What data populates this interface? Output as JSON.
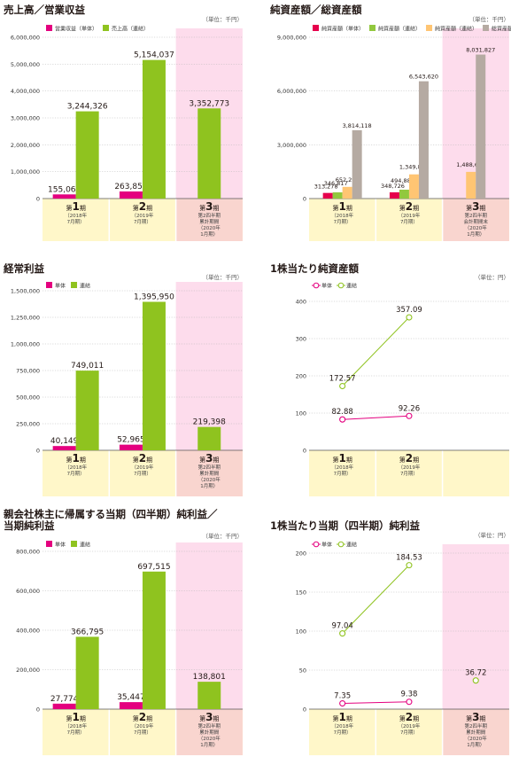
{
  "colors": {
    "single": "#e4007f",
    "consol": "#8fc31f",
    "net_single": "#e6004c",
    "net_consol": "#92c83e",
    "total_single": "#ffc573",
    "total_consol": "#b5aaa2",
    "axis_band": "#fff7c9",
    "q_band": "#fddcec",
    "q_band_axis": "#f9d5cf"
  },
  "periods": {
    "p1": {
      "num": "1",
      "pre": "第",
      "post": "期",
      "sub": [
        "（2018年",
        "7月期）"
      ]
    },
    "p2": {
      "num": "2",
      "pre": "第",
      "post": "期",
      "sub": [
        "（2019年",
        "7月期）"
      ]
    },
    "p3_cum": {
      "num": "3",
      "pre": "第",
      "post": "期",
      "sub": [
        "第2四半期",
        "累計期間",
        "（2020年",
        "1月期）"
      ]
    },
    "p3_end": {
      "num": "3",
      "pre": "第",
      "post": "期",
      "sub": [
        "第2四半期",
        "会計期間末",
        "（2020年",
        "1月期）"
      ]
    }
  },
  "chart_data": [
    {
      "id": "sales",
      "type": "bar",
      "title": "売上高／営業収益",
      "unit": "（単位：千円）",
      "categories": [
        "p1",
        "p2",
        "p3_cum"
      ],
      "ylim": [
        0,
        6000000
      ],
      "yticks": [
        "0",
        "1,000,000",
        "2,000,000",
        "3,000,000",
        "4,000,000",
        "5,000,000",
        "6,000,000"
      ],
      "series": [
        {
          "name": "営業収益（単体）",
          "color": "single",
          "values": [
            155063,
            263856,
            null
          ],
          "labels": [
            "155,063",
            "263,856",
            ""
          ]
        },
        {
          "name": "売上高（連結）",
          "color": "consol",
          "values": [
            3244326,
            5154037,
            3352773
          ],
          "labels": [
            "3,244,326",
            "5,154,037",
            "3,352,773"
          ]
        }
      ]
    },
    {
      "id": "assets",
      "type": "bar",
      "title": "純資産額／総資産額",
      "unit": "（単位：千円）",
      "categories": [
        "p1",
        "p2",
        "p3_end"
      ],
      "ylim": [
        0,
        9000000
      ],
      "yticks": [
        "0",
        "3,000,000",
        "6,000,000",
        "9,000,000"
      ],
      "series": [
        {
          "name": "純資産額（単体）",
          "color": "net_single",
          "values": [
            313278,
            348726,
            null
          ],
          "labels": [
            "313,278",
            "348,726",
            ""
          ]
        },
        {
          "name": "純資産額（連結）",
          "color": "net_consol",
          "values": [
            346817,
            494888,
            null
          ],
          "labels": [
            "346,817",
            "494,888",
            ""
          ]
        },
        {
          "name": "純資産額（連結）",
          "color": "total_single",
          "values": [
            652299,
            1349814,
            1488616
          ],
          "labels": [
            "652,299",
            "1,349,814",
            "1,488,616"
          ]
        },
        {
          "name": "総資産額（連結）",
          "color": "total_consol",
          "values": [
            3814118,
            6543620,
            8031827
          ],
          "labels": [
            "3,814,118",
            "6,543,620",
            "8,031,827"
          ]
        }
      ]
    },
    {
      "id": "ordinary",
      "type": "bar",
      "title": "経常利益",
      "unit": "（単位：千円）",
      "categories": [
        "p1",
        "p2",
        "p3_cum"
      ],
      "ylim": [
        0,
        1500000
      ],
      "yticks": [
        "0",
        "250,000",
        "500,000",
        "750,000",
        "1,000,000",
        "1,250,000",
        "1,500,000"
      ],
      "series": [
        {
          "name": "単体",
          "color": "single",
          "values": [
            40149,
            52965,
            null
          ],
          "labels": [
            "40,149",
            "52,965",
            ""
          ]
        },
        {
          "name": "連結",
          "color": "consol",
          "values": [
            749011,
            1395950,
            219398
          ],
          "labels": [
            "749,011",
            "1,395,950",
            "219,398"
          ]
        }
      ]
    },
    {
      "id": "bps",
      "type": "line",
      "title": "1株当たり純資産額",
      "unit": "（単位：円）",
      "categories": [
        "p1",
        "p2"
      ],
      "ylim": [
        0,
        400
      ],
      "yticks": [
        "0",
        "100",
        "200",
        "300",
        "400"
      ],
      "series": [
        {
          "name": "単体",
          "color": "single",
          "values": [
            82.88,
            92.26
          ],
          "labels": [
            "82.88",
            "92.26"
          ]
        },
        {
          "name": "連結",
          "color": "consol",
          "values": [
            172.57,
            357.09
          ],
          "labels": [
            "172.57",
            "357.09"
          ]
        }
      ]
    },
    {
      "id": "netincome",
      "type": "bar",
      "title": "親会社株主に帰属する当期（四半期）純利益／当期純利益",
      "title_lines": [
        "親会社株主に帰属する当期（四半期）純利益／",
        "当期純利益"
      ],
      "unit": "（単位：千円）",
      "categories": [
        "p1",
        "p2",
        "p3_cum"
      ],
      "ylim": [
        0,
        800000
      ],
      "yticks": [
        "0",
        "200,000",
        "400,000",
        "600,000",
        "800,000"
      ],
      "series": [
        {
          "name": "単体",
          "color": "single",
          "values": [
            27774,
            35447,
            null
          ],
          "labels": [
            "27,774",
            "35,447",
            ""
          ]
        },
        {
          "name": "連結",
          "color": "consol",
          "values": [
            366795,
            697515,
            138801
          ],
          "labels": [
            "366,795",
            "697,515",
            "138,801"
          ]
        }
      ]
    },
    {
      "id": "eps",
      "type": "line",
      "title": "1株当たり当期（四半期）純利益",
      "unit": "（単位：円）",
      "categories": [
        "p1",
        "p2",
        "p3_cum"
      ],
      "ylim": [
        0,
        200
      ],
      "yticks": [
        "0",
        "50",
        "100",
        "150",
        "200"
      ],
      "series": [
        {
          "name": "単体",
          "color": "single",
          "values": [
            7.35,
            9.38,
            null
          ],
          "labels": [
            "7.35",
            "9.38",
            ""
          ]
        },
        {
          "name": "連結",
          "color": "consol",
          "values": [
            97.04,
            184.53,
            36.72
          ],
          "labels": [
            "97.04",
            "184.53",
            "36.72"
          ]
        }
      ]
    }
  ]
}
